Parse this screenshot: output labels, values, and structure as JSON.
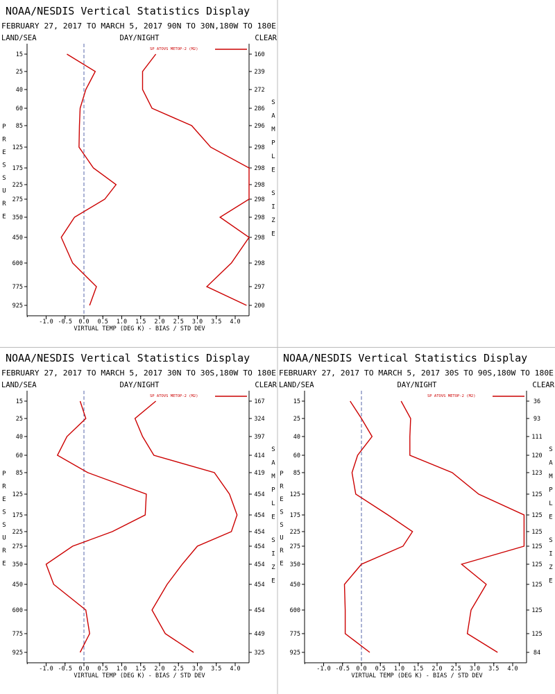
{
  "chart_data": [
    {
      "type": "line",
      "title": "NOAA/NESDIS Vertical Statistics Display",
      "subtitle": "FEBRUARY 27, 2017 TO MARCH 5, 2017 90N TO 30N,180W TO 180E",
      "header": {
        "left": "LAND/SEA",
        "center": "DAY/NIGHT",
        "right": "CLEAR"
      },
      "ylabel": "PRESSURE",
      "y2label": "SAMPLE SIZE",
      "xlabel": "VIRTUAL TEMP (DEG K) - BIAS / STD DEV",
      "legend": "SP ATOVS METOP-2 (M2)",
      "legend_position": "top-right",
      "xlim": [
        -1.5,
        4.3
      ],
      "xticks": [
        "-1.0",
        "-0.5",
        "0.0",
        "0.5",
        "1.0",
        "1.5",
        "2.0",
        "2.5",
        "3.0",
        "3.5",
        "4.0"
      ],
      "pressure_levels": [
        "15",
        "25",
        "40",
        "60",
        "85",
        "125",
        "175",
        "225",
        "275",
        "350",
        "450",
        "600",
        "775",
        "925"
      ],
      "sample_size": [
        "160",
        "239",
        "272",
        "286",
        "296",
        "298",
        "298",
        "298",
        "298",
        "298",
        "298",
        "298",
        "297",
        "200"
      ],
      "color": "#cc0000",
      "series": [
        {
          "name": "BIAS",
          "values": [
            -0.45,
            0.3,
            0.05,
            -0.1,
            -0.12,
            -0.13,
            0.25,
            0.85,
            0.55,
            -0.25,
            -0.6,
            -0.3,
            0.33,
            0.15
          ]
        },
        {
          "name": "STD DEV",
          "values": [
            1.9,
            1.55,
            1.55,
            1.8,
            2.85,
            3.35,
            4.4,
            4.4,
            4.4,
            3.6,
            4.4,
            3.9,
            3.25,
            4.3
          ]
        }
      ]
    },
    {
      "type": "line",
      "title": "NOAA/NESDIS Vertical Statistics Display",
      "subtitle": "FEBRUARY 27, 2017 TO MARCH 5, 2017 30N TO 30S,180W TO 180E",
      "header": {
        "left": "LAND/SEA",
        "center": "DAY/NIGHT",
        "right": "CLEAR"
      },
      "ylabel": "PRESSURE",
      "y2label": "SAMPLE SIZE",
      "xlabel": "VIRTUAL TEMP (DEG K) - BIAS / STD DEV",
      "legend": "SP ATOVS METOP-2 (M2)",
      "legend_position": "top-right",
      "xlim": [
        -1.5,
        4.3
      ],
      "xticks": [
        "-1.0",
        "-0.5",
        "0.0",
        "0.5",
        "1.0",
        "1.5",
        "2.0",
        "2.5",
        "3.0",
        "3.5",
        "4.0"
      ],
      "pressure_levels": [
        "15",
        "25",
        "40",
        "60",
        "85",
        "125",
        "175",
        "225",
        "275",
        "350",
        "450",
        "600",
        "775",
        "925"
      ],
      "sample_size": [
        "167",
        "324",
        "397",
        "414",
        "419",
        "454",
        "454",
        "454",
        "454",
        "454",
        "454",
        "454",
        "449",
        "325"
      ],
      "color": "#cc0000",
      "series": [
        {
          "name": "BIAS",
          "values": [
            -0.1,
            0.05,
            -0.45,
            -0.7,
            0.1,
            1.65,
            1.62,
            0.75,
            -0.3,
            -1.0,
            -0.8,
            0.05,
            0.15,
            -0.1
          ]
        },
        {
          "name": "STD DEV",
          "values": [
            1.9,
            1.35,
            1.55,
            1.85,
            3.45,
            3.85,
            4.05,
            3.9,
            3.0,
            2.6,
            2.2,
            1.8,
            2.15,
            2.9
          ]
        }
      ]
    },
    {
      "type": "line",
      "title": "NOAA/NESDIS Vertical Statistics Display",
      "subtitle": "FEBRUARY 27, 2017 TO MARCH 5, 2017 30S TO 90S,180W TO 180E",
      "header": {
        "left": "LAND/SEA",
        "center": "DAY/NIGHT",
        "right": "CLEAR"
      },
      "ylabel": "PRESSURE",
      "y2label": "SAMPLE SIZE",
      "xlabel": "VIRTUAL TEMP (DEG K) - BIAS / STD DEV",
      "legend": "SP ATOVS METOP-2 (M2)",
      "legend_position": "top-right",
      "xlim": [
        -1.5,
        4.3
      ],
      "xticks": [
        "-1.0",
        "-0.5",
        "0.0",
        "0.5",
        "1.0",
        "1.5",
        "2.0",
        "2.5",
        "3.0",
        "3.5",
        "4.0"
      ],
      "pressure_levels": [
        "15",
        "25",
        "40",
        "60",
        "85",
        "125",
        "175",
        "225",
        "275",
        "350",
        "450",
        "600",
        "775",
        "925"
      ],
      "sample_size": [
        "36",
        "93",
        "111",
        "120",
        "123",
        "125",
        "125",
        "125",
        "125",
        "125",
        "125",
        "125",
        "125",
        "84"
      ],
      "color": "#cc0000",
      "series": [
        {
          "name": "BIAS",
          "values": [
            -0.3,
            0.0,
            0.28,
            -0.1,
            -0.25,
            -0.15,
            0.7,
            1.35,
            1.1,
            0.0,
            -0.45,
            -0.43,
            -0.43,
            0.22
          ]
        },
        {
          "name": "STD DEV",
          "values": [
            1.05,
            1.3,
            1.28,
            1.28,
            2.4,
            3.1,
            4.3,
            4.3,
            4.3,
            2.65,
            3.3,
            2.9,
            2.8,
            3.6
          ]
        }
      ]
    }
  ]
}
